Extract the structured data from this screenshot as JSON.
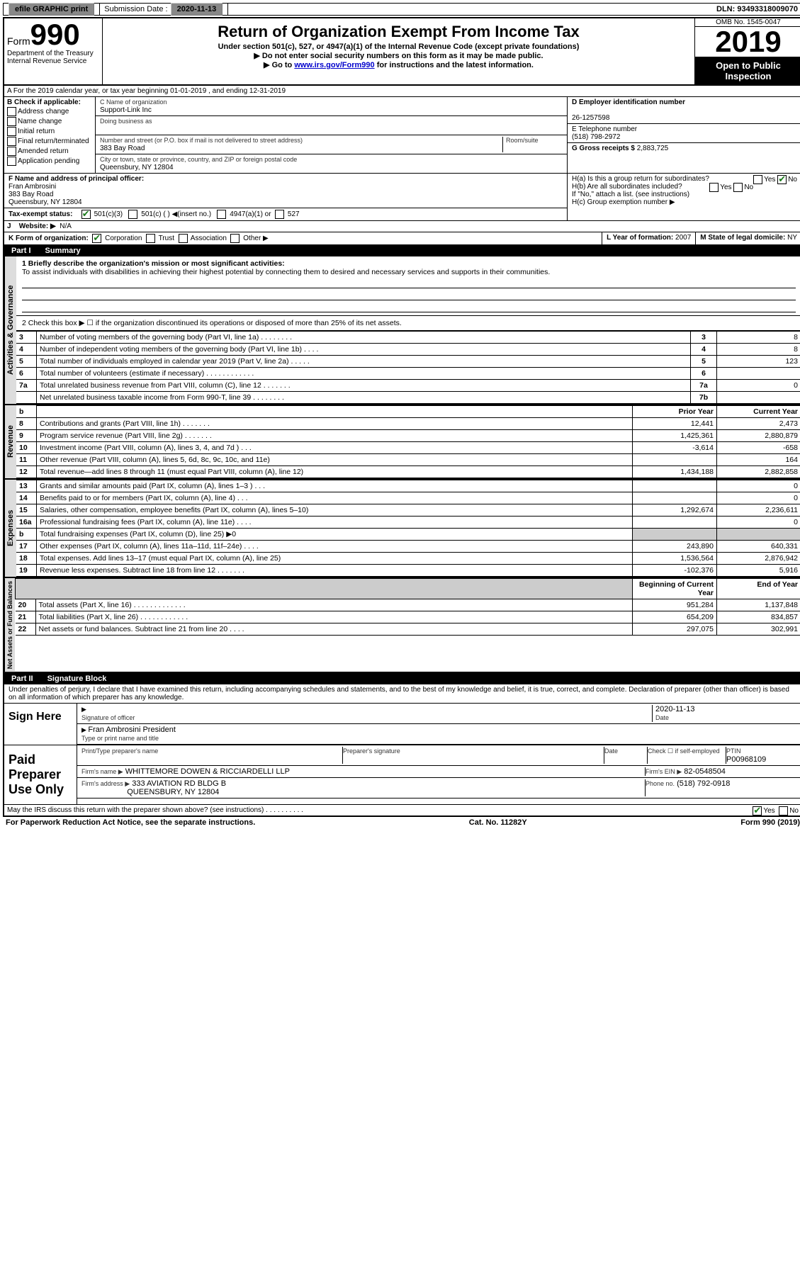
{
  "topbar": {
    "efile": "efile GRAPHIC print",
    "submission_label": "Submission Date :",
    "submission_date": "2020-11-13",
    "dln_label": "DLN:",
    "dln": "93493318009070"
  },
  "header": {
    "form_prefix": "Form",
    "form_number": "990",
    "dept": "Department of the Treasury Internal Revenue Service",
    "title": "Return of Organization Exempt From Income Tax",
    "sub1": "Under section 501(c), 527, or 4947(a)(1) of the Internal Revenue Code (except private foundations)",
    "sub2": "▶ Do not enter social security numbers on this form as it may be made public.",
    "sub3_prefix": "▶ Go to ",
    "sub3_link": "www.irs.gov/Form990",
    "sub3_suffix": " for instructions and the latest information.",
    "omb": "OMB No. 1545-0047",
    "year": "2019",
    "inspection": "Open to Public Inspection"
  },
  "lineA": "A For the 2019 calendar year, or tax year beginning 01-01-2019   , and ending 12-31-2019",
  "sectionB": {
    "label": "B Check if applicable:",
    "opts": [
      "Address change",
      "Name change",
      "Initial return",
      "Final return/terminated",
      "Amended return",
      "Application pending"
    ]
  },
  "sectionC": {
    "name_label": "C Name of organization",
    "name": "Support-Link Inc",
    "dba_label": "Doing business as",
    "addr_label": "Number and street (or P.O. box if mail is not delivered to street address)",
    "room_label": "Room/suite",
    "addr": "383 Bay Road",
    "city_label": "City or town, state or province, country, and ZIP or foreign postal code",
    "city": "Queensbury, NY  12804"
  },
  "sectionD": {
    "label": "D Employer identification number",
    "ein": "26-1257598",
    "phone_label": "E Telephone number",
    "phone": "(518) 798-2972",
    "gross_label": "G Gross receipts $",
    "gross": "2,883,725"
  },
  "sectionF": {
    "label": "F  Name and address of principal officer:",
    "name": "Fran Ambrosini",
    "addr1": "383 Bay Road",
    "addr2": "Queensbury, NY  12804"
  },
  "sectionH": {
    "a": "H(a)  Is this a group return for subordinates?",
    "b": "H(b)  Are all subordinates included?",
    "b_note": "If \"No,\" attach a list. (see instructions)",
    "c": "H(c)  Group exemption number ▶"
  },
  "taxExempt": {
    "label": "Tax-exempt status:",
    "opts": [
      "501(c)(3)",
      "501(c) (  ) ◀(insert no.)",
      "4947(a)(1) or",
      "527"
    ]
  },
  "rowJ": {
    "label": "J",
    "text": "Website: ▶",
    "value": "N/A"
  },
  "rowK": {
    "label": "K Form of organization:",
    "opts": [
      "Corporation",
      "Trust",
      "Association",
      "Other ▶"
    ]
  },
  "rowL": {
    "label": "L Year of formation:",
    "value": "2007"
  },
  "rowM": {
    "label": "M State of legal domicile:",
    "value": "NY"
  },
  "part1": {
    "label": "Part I",
    "title": "Summary"
  },
  "mission": {
    "label": "1  Briefly describe the organization's mission or most significant activities:",
    "text": "To assist individuals with disabilities in achieving their highest potential by connecting them to desired and necessary services and supports in their communities."
  },
  "line2": "2   Check this box ▶ ☐  if the organization discontinued its operations or disposed of more than 25% of its net assets.",
  "gov_rows": [
    {
      "n": "3",
      "t": "Number of voting members of the governing body (Part VI, line 1a)  .   .   .   .   .   .   .   .",
      "box": "3",
      "v": "8"
    },
    {
      "n": "4",
      "t": "Number of independent voting members of the governing body (Part VI, line 1b)  .   .   .   .",
      "box": "4",
      "v": "8"
    },
    {
      "n": "5",
      "t": "Total number of individuals employed in calendar year 2019 (Part V, line 2a)  .   .   .   .   .",
      "box": "5",
      "v": "123"
    },
    {
      "n": "6",
      "t": "Total number of volunteers (estimate if necessary)   .   .   .   .   .   .   .   .   .   .   .   .",
      "box": "6",
      "v": ""
    },
    {
      "n": "7a",
      "t": "Total unrelated business revenue from Part VIII, column (C), line 12  .   .   .   .   .   .   .",
      "box": "7a",
      "v": "0"
    },
    {
      "n": "",
      "t": "Net unrelated business taxable income from Form 990-T, line 39   .   .   .   .   .   .   .   .",
      "box": "7b",
      "v": ""
    }
  ],
  "col_headers": {
    "prior": "Prior Year",
    "current": "Current Year"
  },
  "rev_rows": [
    {
      "n": "8",
      "t": "Contributions and grants (Part VIII, line 1h)   .   .   .   .   .   .   .",
      "p": "12,441",
      "c": "2,473"
    },
    {
      "n": "9",
      "t": "Program service revenue (Part VIII, line 2g)   .   .   .   .   .   .   .",
      "p": "1,425,361",
      "c": "2,880,879"
    },
    {
      "n": "10",
      "t": "Investment income (Part VIII, column (A), lines 3, 4, and 7d )   .   .   .",
      "p": "-3,614",
      "c": "-658"
    },
    {
      "n": "11",
      "t": "Other revenue (Part VIII, column (A), lines 5, 6d, 8c, 9c, 10c, and 11e)",
      "p": "",
      "c": "164"
    },
    {
      "n": "12",
      "t": "Total revenue—add lines 8 through 11 (must equal Part VIII, column (A), line 12)",
      "p": "1,434,188",
      "c": "2,882,858"
    }
  ],
  "exp_rows": [
    {
      "n": "13",
      "t": "Grants and similar amounts paid (Part IX, column (A), lines 1–3 )   .   .   .",
      "p": "",
      "c": "0"
    },
    {
      "n": "14",
      "t": "Benefits paid to or for members (Part IX, column (A), line 4)   .   .   .",
      "p": "",
      "c": "0"
    },
    {
      "n": "15",
      "t": "Salaries, other compensation, employee benefits (Part IX, column (A), lines 5–10)",
      "p": "1,292,674",
      "c": "2,236,611"
    },
    {
      "n": "16a",
      "t": "Professional fundraising fees (Part IX, column (A), line 11e)   .   .   .   .",
      "p": "",
      "c": "0"
    },
    {
      "n": "b",
      "t": "Total fundraising expenses (Part IX, column (D), line 25) ▶0",
      "p": "shade",
      "c": "shade"
    },
    {
      "n": "17",
      "t": "Other expenses (Part IX, column (A), lines 11a–11d, 11f–24e)   .   .   .   .",
      "p": "243,890",
      "c": "640,331"
    },
    {
      "n": "18",
      "t": "Total expenses. Add lines 13–17 (must equal Part IX, column (A), line 25)",
      "p": "1,536,564",
      "c": "2,876,942"
    },
    {
      "n": "19",
      "t": "Revenue less expenses. Subtract line 18 from line 12 .   .   .   .   .   .   .",
      "p": "-102,376",
      "c": "5,916"
    }
  ],
  "net_headers": {
    "begin": "Beginning of Current Year",
    "end": "End of Year"
  },
  "net_rows": [
    {
      "n": "20",
      "t": "Total assets (Part X, line 16)  .   .   .   .   .   .   .   .   .   .   .   .   .",
      "p": "951,284",
      "c": "1,137,848"
    },
    {
      "n": "21",
      "t": "Total liabilities (Part X, line 26)  .   .   .   .   .   .   .   .   .   .   .   .",
      "p": "654,209",
      "c": "834,857"
    },
    {
      "n": "22",
      "t": "Net assets or fund balances. Subtract line 21 from line 20   .   .   .   .",
      "p": "297,075",
      "c": "302,991"
    }
  ],
  "part2": {
    "label": "Part II",
    "title": "Signature Block"
  },
  "penalties": "Under penalties of perjury, I declare that I have examined this return, including accompanying schedules and statements, and to the best of my knowledge and belief, it is true, correct, and complete. Declaration of preparer (other than officer) is based on all information of which preparer has any knowledge.",
  "sign": {
    "here": "Sign Here",
    "sig_officer": "Signature of officer",
    "date_label": "Date",
    "date": "2020-11-13",
    "name": "Fran Ambrosini  President",
    "name_label": "Type or print name and title"
  },
  "preparer": {
    "title": "Paid Preparer Use Only",
    "print_label": "Print/Type preparer's name",
    "sig_label": "Preparer's signature",
    "date_label": "Date",
    "check_label": "Check ☐ if self-employed",
    "ptin_label": "PTIN",
    "ptin": "P00968109",
    "firm_label": "Firm's name    ▶",
    "firm": "WHITTEMORE DOWEN & RICCIARDELLI LLP",
    "ein_label": "Firm's EIN ▶",
    "ein": "82-0548504",
    "addr_label": "Firm's address ▶",
    "addr1": "333 AVIATION RD BLDG B",
    "addr2": "QUEENSBURY, NY  12804",
    "phone_label": "Phone no.",
    "phone": "(518) 792-0918"
  },
  "discuss": "May the IRS discuss this return with the preparer shown above? (see instructions)   .   .   .   .   .   .   .   .   .   .",
  "footer": {
    "l": "For Paperwork Reduction Act Notice, see the separate instructions.",
    "m": "Cat. No. 11282Y",
    "r": "Form 990 (2019)"
  },
  "vtabs": {
    "gov": "Activities & Governance",
    "rev": "Revenue",
    "exp": "Expenses",
    "net": "Net Assets or Fund Balances"
  }
}
